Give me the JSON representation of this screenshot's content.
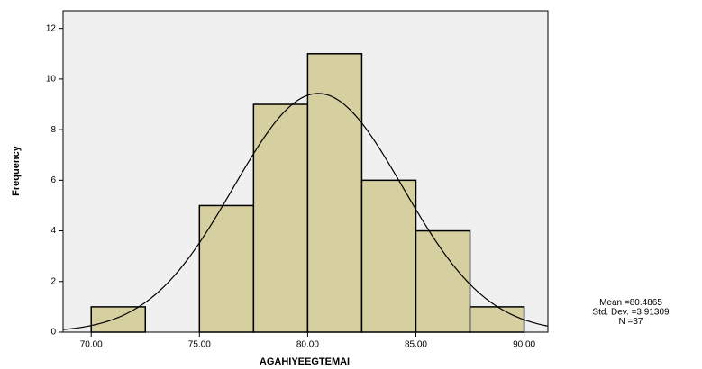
{
  "chart_data": {
    "type": "histogram",
    "bins": [
      70,
      72.5,
      75,
      77.5,
      80,
      82.5,
      85,
      87.5,
      90
    ],
    "values": [
      1,
      0,
      5,
      9,
      11,
      6,
      4,
      1
    ],
    "color": "#d6d0a0",
    "xlabel": "AGAHIYEEGTEMAI",
    "ylabel": "Frequency",
    "xlim": [
      68.7,
      91.1
    ],
    "ylim": [
      0,
      12.7
    ],
    "xticks": [
      {
        "value": 70,
        "label": "70.00"
      },
      {
        "value": 75,
        "label": "75.00"
      },
      {
        "value": 80,
        "label": "80.00"
      },
      {
        "value": 85,
        "label": "85.00"
      },
      {
        "value": 90,
        "label": "90.00"
      }
    ],
    "yticks": [
      0,
      2,
      4,
      6,
      8,
      10,
      12
    ],
    "stats": [
      {
        "label": "Mean =",
        "value": 80.4865
      },
      {
        "label": "Std. Dev. =",
        "value": 3.91309
      },
      {
        "label": "N =",
        "value": 37
      }
    ]
  }
}
